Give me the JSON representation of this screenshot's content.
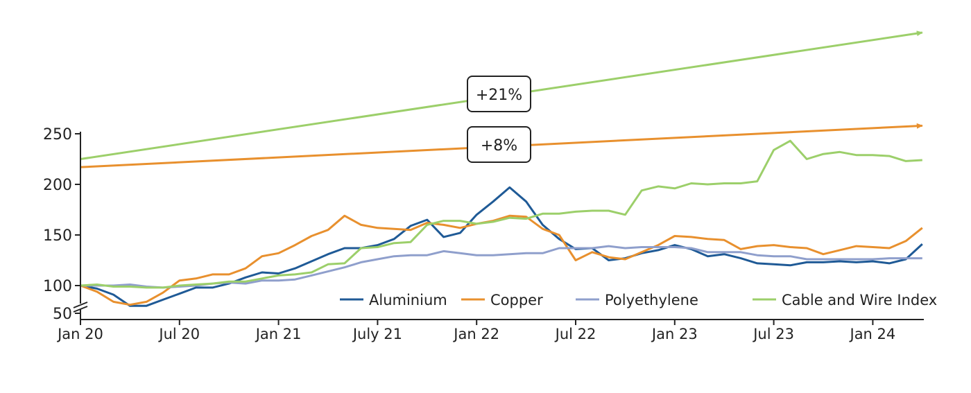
{
  "chart_data": {
    "type": "line",
    "title": "",
    "xlabel": "",
    "ylabel": "",
    "x_start": "2020-01",
    "x_frequency": "monthly",
    "x_tick_labels": [
      "Jan 20",
      "Jul 20",
      "Jan 21",
      "July 21",
      "Jan 22",
      "Jul 22",
      "Jan 23",
      "Jul 23",
      "Jan 24"
    ],
    "y_ticks": [
      50,
      100,
      150,
      200,
      250
    ],
    "y_axis_break": "between 50 and 100",
    "ylim": [
      50,
      250
    ],
    "grid": false,
    "legend_placement": "bottom-right",
    "series": [
      {
        "name": "Aluminium",
        "color": "#1f5a96",
        "values": [
          100,
          97,
          91,
          80,
          80,
          86,
          92,
          98,
          98,
          102,
          108,
          113,
          112,
          117,
          124,
          131,
          137,
          137,
          140,
          146,
          159,
          165,
          148,
          152,
          170,
          183,
          197,
          183,
          160,
          146,
          136,
          137,
          125,
          127,
          132,
          135,
          140,
          136,
          129,
          131,
          127,
          122,
          121,
          120,
          123,
          123,
          124,
          123,
          124,
          122,
          126,
          141
        ]
      },
      {
        "name": "Copper",
        "color": "#e8902e",
        "values": [
          100,
          94,
          84,
          81,
          84,
          93,
          105,
          107,
          111,
          111,
          117,
          129,
          132,
          140,
          149,
          155,
          169,
          160,
          157,
          156,
          155,
          162,
          160,
          157,
          161,
          164,
          169,
          168,
          156,
          150,
          125,
          133,
          128,
          126,
          133,
          140,
          149,
          148,
          146,
          145,
          136,
          139,
          140,
          138,
          137,
          131,
          135,
          139,
          138,
          137,
          144,
          157
        ]
      },
      {
        "name": "Polyethylene",
        "color": "#8f9fcc",
        "values": [
          100,
          100,
          100,
          101,
          99,
          98,
          99,
          100,
          102,
          103,
          102,
          105,
          105,
          106,
          110,
          114,
          118,
          123,
          126,
          129,
          130,
          130,
          134,
          132,
          130,
          130,
          131,
          132,
          132,
          137,
          137,
          137,
          139,
          137,
          138,
          138,
          138,
          137,
          133,
          133,
          133,
          130,
          129,
          129,
          126,
          126,
          126,
          126,
          126,
          127,
          127,
          127
        ]
      },
      {
        "name": "Cable and Wire Index",
        "color": "#9ccf6a",
        "values": [
          100,
          101,
          99,
          99,
          98,
          98,
          100,
          101,
          102,
          104,
          104,
          107,
          110,
          111,
          113,
          121,
          122,
          137,
          138,
          142,
          143,
          160,
          164,
          164,
          161,
          163,
          167,
          166,
          171,
          171,
          173,
          174,
          174,
          170,
          194,
          198,
          196,
          201,
          200,
          201,
          201,
          203,
          234,
          243,
          225,
          230,
          232,
          229,
          229,
          228,
          223,
          224
        ]
      }
    ],
    "trend_arrows": [
      {
        "series": "Cable and Wire Index",
        "color": "#9ccf6a",
        "start_value": 225,
        "end_value": 350,
        "label": "+21%"
      },
      {
        "series": "Copper",
        "color": "#e8902e",
        "start_value": 217,
        "end_value": 258,
        "label": "+8%"
      }
    ]
  }
}
